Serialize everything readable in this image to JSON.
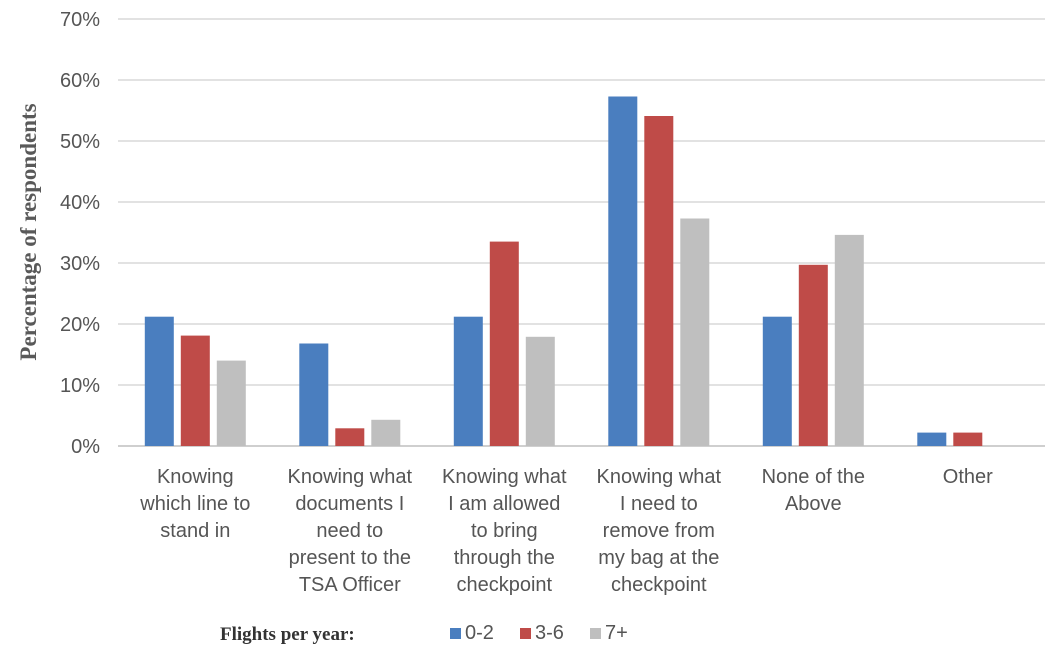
{
  "chart_data": {
    "type": "bar",
    "ylabel": "Percentage of respondents",
    "ylim": [
      0,
      70
    ],
    "yticks": [
      "0%",
      "10%",
      "20%",
      "30%",
      "40%",
      "50%",
      "60%",
      "70%"
    ],
    "grid": true,
    "legend_position": "bottom",
    "legend_title": "Flights per year:",
    "categories": [
      [
        "Knowing",
        "which line to",
        "stand in"
      ],
      [
        "Knowing what",
        "documents I",
        "need to",
        "present to the",
        "TSA Officer"
      ],
      [
        "Knowing what",
        "I am allowed",
        "to bring",
        "through the",
        "checkpoint"
      ],
      [
        "Knowing what",
        "I need to",
        "remove from",
        "my bag at the",
        "checkpoint"
      ],
      [
        "None of the",
        "Above"
      ],
      [
        "Other"
      ]
    ],
    "series": [
      {
        "name": "0-2",
        "color": "#4a7ebf",
        "values": [
          21.2,
          16.8,
          21.2,
          57.3,
          21.2,
          2.2
        ]
      },
      {
        "name": "3-6",
        "color": "#bf4b48",
        "values": [
          18.1,
          2.9,
          33.5,
          54.1,
          29.7,
          2.2
        ]
      },
      {
        "name": "7+",
        "color": "#bfbfbf",
        "values": [
          14.0,
          4.3,
          17.9,
          37.3,
          34.6,
          0
        ]
      }
    ]
  }
}
